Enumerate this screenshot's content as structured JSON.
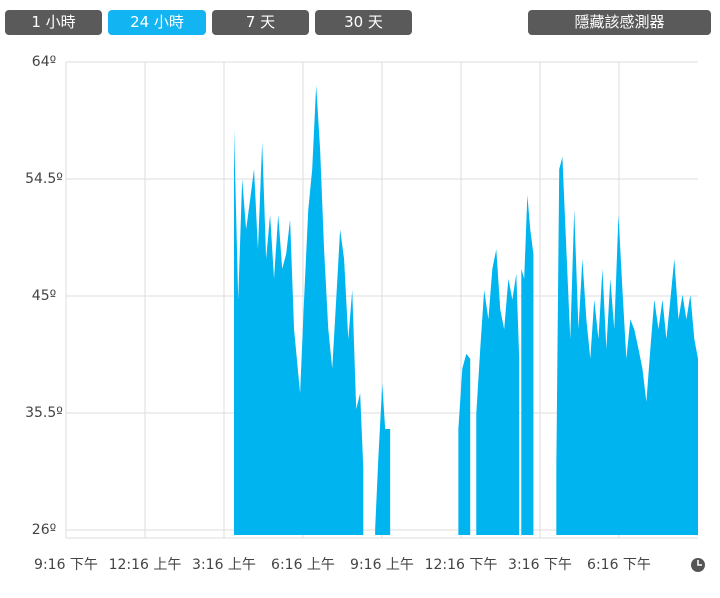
{
  "buttons": [
    "1 小時",
    "24 小時",
    "7 天",
    "30 天",
    "隱藏該感測器"
  ],
  "chart_data": {
    "type": "area",
    "x": [
      6.38,
      6.54,
      6.69,
      6.84,
      6.99,
      7.14,
      7.29,
      7.45,
      7.6,
      7.75,
      7.9,
      8.06,
      8.21,
      8.36,
      8.51,
      8.66,
      8.89,
      9.04,
      9.2,
      9.35,
      9.5,
      9.65,
      9.8,
      9.96,
      10.11,
      10.26,
      10.41,
      10.56,
      10.72,
      10.87,
      11.02,
      11.17,
      11.29,
      11.5,
      11.74,
      11.86,
      12.01,
      12.12,
      12.31,
      12.6,
      14.9,
      15.05,
      15.2,
      15.35,
      15.45,
      15.58,
      15.73,
      15.88,
      16.04,
      16.19,
      16.34,
      16.49,
      16.64,
      16.8,
      16.95,
      17.1,
      17.21,
      17.25,
      17.29,
      17.4,
      17.52,
      17.63,
      17.75,
      18,
      18.62,
      18.73,
      18.85,
      19,
      19.15,
      19.3,
      19.46,
      19.61,
      19.76,
      19.91,
      20.06,
      20.22,
      20.37,
      20.52,
      20.67,
      20.82,
      20.98,
      21.13,
      21.28,
      21.43,
      21.58,
      21.74,
      21.89,
      22.04,
      22.19,
      22.34,
      22.5,
      22.65,
      22.8,
      22.95,
      23.1,
      23.26,
      23.41,
      23.56,
      23.71,
      23.86,
      24
    ],
    "series": [
      {
        "color": "#00b4f0",
        "values": [
          58.6,
          44.7,
          54.5,
          50.4,
          52.8,
          55.3,
          48.8,
          57.5,
          48.0,
          51.6,
          46.4,
          51.6,
          47.2,
          48.4,
          51.2,
          42.3,
          37.1,
          44.7,
          52.0,
          55.3,
          62.1,
          56.9,
          48.8,
          42.3,
          39.1,
          44.7,
          50.4,
          48.0,
          41.5,
          45.5,
          35.8,
          37.1,
          31.0,
          null,
          26.1,
          31.8,
          37.9,
          34.2,
          34.2,
          null,
          34.2,
          39.1,
          40.3,
          39.9,
          null,
          35.4,
          40.7,
          45.5,
          43.1,
          47.2,
          48.8,
          43.9,
          42.3,
          46.4,
          44.7,
          46.8,
          39.9,
          null,
          47.2,
          46.4,
          53.2,
          50.4,
          48.4,
          null,
          31.0,
          55.3,
          56.3,
          48.8,
          41.5,
          52.0,
          42.3,
          48.0,
          43.1,
          39.9,
          44.7,
          41.5,
          47.2,
          40.7,
          46.4,
          42.3,
          51.6,
          45.5,
          39.9,
          43.1,
          42.3,
          40.7,
          39.1,
          36.4,
          40.7,
          44.7,
          42.3,
          44.7,
          41.5,
          44.7,
          48.0,
          43.1,
          45.1,
          43.1,
          45.1,
          41.5,
          39.9
        ]
      }
    ],
    "xlim": [
      0,
      24
    ],
    "xticks": [
      {
        "value": 0,
        "label": "9:16 下午"
      },
      {
        "value": 3,
        "label": "12:16 上午"
      },
      {
        "value": 6,
        "label": "3:16 上午"
      },
      {
        "value": 9,
        "label": "6:16 上午"
      },
      {
        "value": 12,
        "label": "9:16 上午"
      },
      {
        "value": 15,
        "label": "12:16 下午"
      },
      {
        "value": 18,
        "label": "3:16 下午"
      },
      {
        "value": 21,
        "label": "6:16 下午"
      }
    ],
    "ylim": [
      26,
      64
    ],
    "yticks": [
      {
        "value": 26,
        "label": "26º"
      },
      {
        "value": 35.5,
        "label": "35.5º"
      },
      {
        "value": 45,
        "label": "45º"
      },
      {
        "value": 54.5,
        "label": "54.5º"
      },
      {
        "value": 64,
        "label": "64º"
      }
    ],
    "grid": true
  }
}
